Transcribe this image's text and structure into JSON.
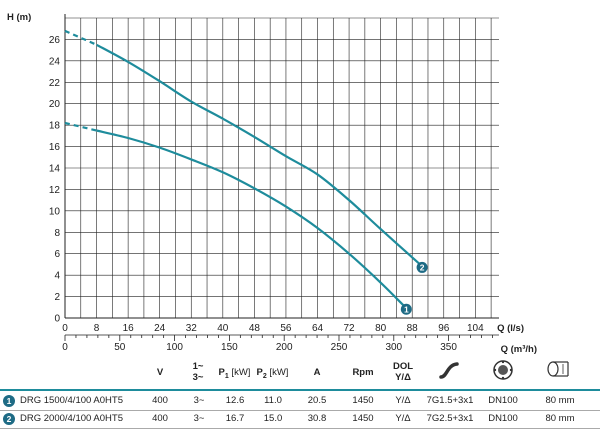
{
  "chart_data": {
    "type": "line",
    "ylabel": "H (m)",
    "xlabel": "Q (l/s)",
    "xlabel2": "Q (m³/h)",
    "ylim": [
      0,
      28
    ],
    "xlim": [
      0,
      110
    ],
    "yticks": [
      0,
      2,
      4,
      6,
      8,
      10,
      12,
      14,
      16,
      18,
      20,
      22,
      24,
      26
    ],
    "xticks": [
      0,
      8,
      16,
      24,
      32,
      40,
      48,
      56,
      64,
      72,
      80,
      88,
      96,
      104
    ],
    "x2ticks": [
      0,
      50,
      100,
      150,
      200,
      250,
      300,
      350
    ],
    "grid": true,
    "series": [
      {
        "name": "1",
        "color": "#1e8c9c",
        "dashed_to_x": 8,
        "x": [
          0,
          8,
          16,
          24,
          32,
          40,
          48,
          56,
          64,
          72,
          80,
          86
        ],
        "y": [
          18.2,
          17.5,
          16.8,
          15.9,
          14.8,
          13.6,
          12.1,
          10.4,
          8.4,
          6.0,
          3.3,
          1.1
        ]
      },
      {
        "name": "2",
        "color": "#1e8c9c",
        "dashed_to_x": 8,
        "x": [
          0,
          8,
          16,
          24,
          32,
          40,
          48,
          56,
          64,
          72,
          80,
          90
        ],
        "y": [
          26.8,
          25.5,
          23.9,
          22.1,
          20.2,
          18.6,
          16.9,
          15.1,
          13.4,
          11.0,
          8.3,
          5.0
        ]
      }
    ]
  },
  "table": {
    "headers": {
      "v": "V",
      "phase_top": "1~",
      "phase_bot": "3~",
      "p1_main": "P",
      "p1_sub": "1",
      "p1_unit": " [kW]",
      "p2_main": "P",
      "p2_sub": "2",
      "p2_unit": " [kW]",
      "a": "A",
      "rpm": "Rpm",
      "dol_top": "DOL",
      "dol_bot": "Y/Δ",
      "cable_icon": "cable-icon",
      "outlet_icon": "outlet-flange-icon",
      "diameter_icon": "pump-diameter-icon"
    },
    "rows": [
      {
        "num": "1",
        "model": "DRG 1500/4/100 A0HT5",
        "v": "400",
        "phase": "3~",
        "p1": "12.6",
        "p2": "11.0",
        "a": "20.5",
        "rpm": "1450",
        "start": "Y/Δ",
        "cable": "7G1.5+3x1",
        "outlet": "DN100",
        "dia": "80 mm"
      },
      {
        "num": "2",
        "model": "DRG 2000/4/100 A0HT5",
        "v": "400",
        "phase": "3~",
        "p1": "16.7",
        "p2": "15.0",
        "a": "30.8",
        "rpm": "1450",
        "start": "Y/Δ",
        "cable": "7G2.5+3x1",
        "outlet": "DN100",
        "dia": "80 mm"
      }
    ]
  }
}
